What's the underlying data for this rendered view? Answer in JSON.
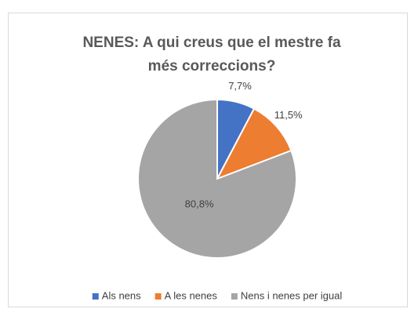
{
  "chart_data": {
    "type": "pie",
    "title": "NENES: A qui creus que el mestre fa més correccions?",
    "categories": [
      "Als nens",
      "A les nenes",
      "Nens i nenes per igual"
    ],
    "values": [
      7.7,
      11.5,
      80.8
    ],
    "value_labels": [
      "7,7%",
      "11,5%",
      "80,8%"
    ],
    "colors": [
      "#4472c4",
      "#ed7d31",
      "#a5a5a5"
    ],
    "legend": "bottom"
  }
}
